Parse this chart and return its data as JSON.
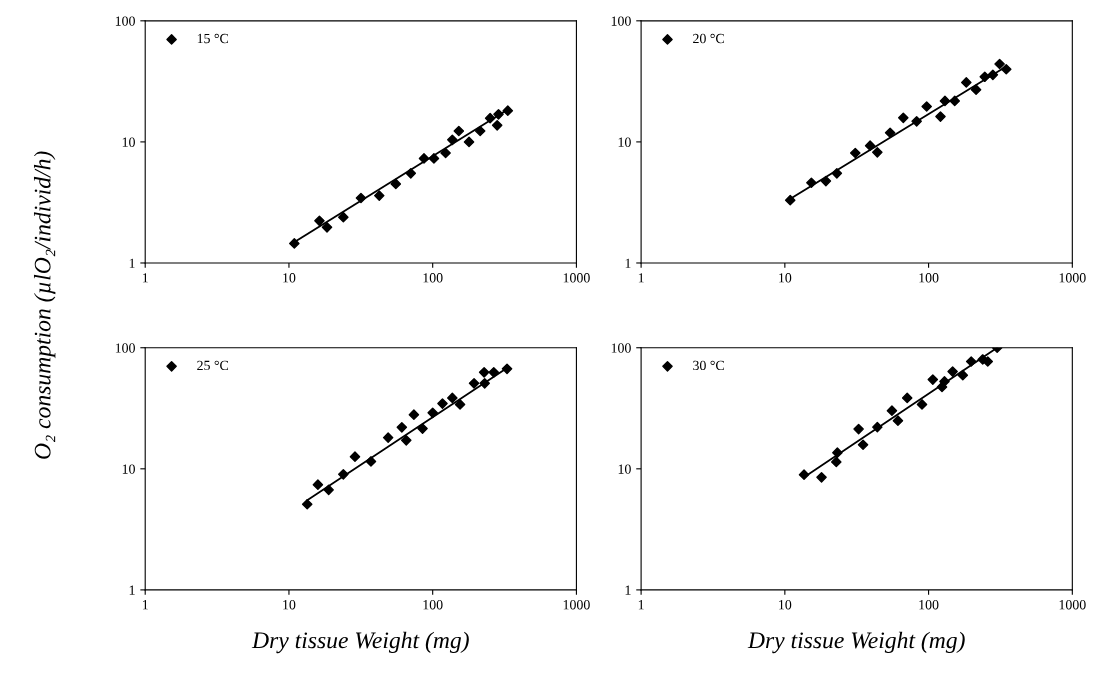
{
  "chart_data": [
    {
      "type": "scatter",
      "ylabel": "O₂ consumption (µlO₂/individ/h)",
      "log": "xy",
      "xlim": [
        1,
        1000
      ],
      "ylim": [
        1,
        100
      ],
      "xticks": [
        1,
        10,
        100,
        1000
      ],
      "yticks": [
        1,
        10,
        100
      ],
      "grid": false,
      "legend": "top left",
      "marker": "diamond",
      "series": [
        {
          "name": "15 °C",
          "color": "#000000",
          "x": [
            10.9,
            16.3,
            18.4,
            23.9,
            31.7,
            42.5,
            55.4,
            70.4,
            87,
            102,
            123,
            137,
            152,
            179,
            214,
            251,
            281,
            287,
            333
          ],
          "values": [
            1.45,
            2.23,
            1.97,
            2.39,
            3.44,
            3.6,
            4.5,
            5.5,
            7.3,
            7.3,
            8.1,
            10.4,
            12.3,
            10,
            12.3,
            15.7,
            13.7,
            16.9,
            18.1
          ]
        },
        {
          "type": "line",
          "marker": "none",
          "color": "#000000",
          "x": [
            11,
            333
          ],
          "values": [
            1.5,
            18.5
          ]
        }
      ]
    },
    {
      "type": "scatter",
      "log": "xy",
      "xlim": [
        1,
        1000
      ],
      "ylim": [
        1,
        100
      ],
      "xticks": [
        1,
        10,
        100,
        1000
      ],
      "yticks": [
        1,
        10,
        100
      ],
      "grid": false,
      "legend": "top left",
      "marker": "diamond",
      "series": [
        {
          "name": "20 °C",
          "color": "#000000",
          "x": [
            10.9,
            15.3,
            19.3,
            23,
            30.9,
            39.2,
            44,
            54,
            66.7,
            82.6,
            97,
            121,
            130,
            152,
            183,
            214,
            246,
            280,
            312,
            347
          ],
          "values": [
            3.3,
            4.6,
            4.75,
            5.5,
            8.1,
            9.3,
            8.2,
            11.9,
            15.8,
            14.8,
            19.6,
            16.2,
            21.8,
            21.8,
            31,
            27,
            34.5,
            35.8,
            44,
            39.8
          ]
        },
        {
          "type": "line",
          "marker": "none",
          "color": "#000000",
          "x": [
            11,
            347
          ],
          "values": [
            3.4,
            42
          ]
        }
      ]
    },
    {
      "type": "scatter",
      "xlabel": "Dry tissue Weight (mg)",
      "log": "xy",
      "xlim": [
        1,
        1000
      ],
      "ylim": [
        1,
        100
      ],
      "xticks": [
        1,
        10,
        100,
        1000
      ],
      "yticks": [
        1,
        10,
        100
      ],
      "grid": false,
      "legend": "top left",
      "marker": "diamond",
      "series": [
        {
          "name": "25 °C",
          "color": "#000000",
          "x": [
            13.4,
            15.9,
            18.9,
            23.9,
            28.8,
            37.2,
            49,
            61,
            65.5,
            74,
            85,
            100,
            117,
            137,
            155,
            194,
            230,
            228,
            266,
            329
          ],
          "values": [
            5.1,
            7.4,
            6.7,
            9.0,
            12.6,
            11.5,
            18.1,
            22,
            17.2,
            28,
            21.5,
            29,
            34.6,
            38.5,
            34,
            50.8,
            50.8,
            62.7,
            62.7,
            67
          ]
        },
        {
          "type": "line",
          "marker": "none",
          "color": "#000000",
          "x": [
            13.4,
            329
          ],
          "values": [
            5.5,
            68
          ]
        }
      ]
    },
    {
      "type": "scatter",
      "xlabel": "Dry tissue Weight (mg)",
      "log": "xy",
      "xlim": [
        1,
        1000
      ],
      "ylim": [
        1,
        100
      ],
      "xticks": [
        1,
        10,
        100,
        1000
      ],
      "yticks": [
        1,
        10,
        100
      ],
      "grid": false,
      "legend": "top left",
      "marker": "diamond",
      "series": [
        {
          "name": "30 °C",
          "color": "#000000",
          "x": [
            13.6,
            18,
            22.8,
            23.2,
            32.6,
            35,
            44,
            55.6,
            61.2,
            71,
            90,
            107,
            124,
            129,
            147,
            173,
            198,
            238,
            258,
            300
          ],
          "values": [
            8.95,
            8.5,
            11.4,
            13.6,
            21.3,
            15.8,
            22.1,
            30.2,
            25,
            38.5,
            34,
            54.6,
            47.5,
            52.7,
            63.6,
            59.3,
            77,
            80,
            77,
            100
          ]
        },
        {
          "type": "line",
          "marker": "none",
          "color": "#000000",
          "x": [
            13.6,
            300
          ],
          "values": [
            8.5,
            100
          ]
        }
      ]
    }
  ]
}
